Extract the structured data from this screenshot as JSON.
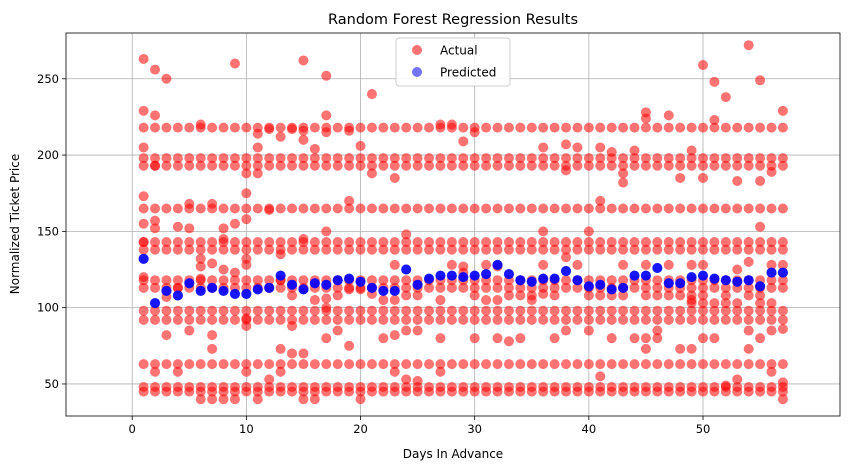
{
  "chart_data": {
    "type": "scatter",
    "title": "Random Forest Regression Results",
    "xlabel": "Days In Advance",
    "ylabel": "Normalized Ticket Price",
    "xlim": [
      -5.8,
      62
    ],
    "ylim": [
      29,
      280
    ],
    "xticks": [
      0,
      10,
      20,
      30,
      40,
      50
    ],
    "yticks": [
      50,
      100,
      150,
      200,
      250
    ],
    "grid": true,
    "legend_position": "upper center",
    "series": [
      {
        "name": "Actual",
        "color": "#ff0000",
        "alpha": 0.55,
        "price_levels": [
          45,
          48,
          63,
          92,
          98,
          113,
          118,
          138,
          143,
          165,
          193,
          198,
          218
        ],
        "outliers": [
          [
            1,
            263
          ],
          [
            1,
            229
          ],
          [
            1,
            205
          ],
          [
            1,
            173
          ],
          [
            1,
            155
          ],
          [
            1,
            143
          ],
          [
            1,
            120
          ],
          [
            2,
            256
          ],
          [
            2,
            226
          ],
          [
            2,
            193
          ],
          [
            2,
            157
          ],
          [
            2,
            152
          ],
          [
            2,
            58
          ],
          [
            3,
            250
          ],
          [
            3,
            107
          ],
          [
            3,
            82
          ],
          [
            4,
            153
          ],
          [
            4,
            113
          ],
          [
            4,
            58
          ],
          [
            5,
            168
          ],
          [
            5,
            152
          ],
          [
            5,
            85
          ],
          [
            6,
            220
          ],
          [
            6,
            132
          ],
          [
            6,
            127
          ],
          [
            6,
            119
          ],
          [
            6,
            40
          ],
          [
            7,
            168
          ],
          [
            7,
            129
          ],
          [
            7,
            82
          ],
          [
            7,
            73
          ],
          [
            7,
            40
          ],
          [
            8,
            152
          ],
          [
            8,
            145
          ],
          [
            8,
            125
          ],
          [
            8,
            40
          ],
          [
            9,
            260
          ],
          [
            9,
            155
          ],
          [
            9,
            123
          ],
          [
            9,
            40
          ],
          [
            10,
            188
          ],
          [
            10,
            175
          ],
          [
            10,
            158
          ],
          [
            10,
            132
          ],
          [
            10,
            128
          ],
          [
            10,
            93
          ],
          [
            10,
            88
          ],
          [
            10,
            58
          ],
          [
            11,
            214
          ],
          [
            11,
            205
          ],
          [
            11,
            188
          ],
          [
            11,
            40
          ],
          [
            12,
            217
          ],
          [
            12,
            164
          ],
          [
            12,
            53
          ],
          [
            13,
            212
          ],
          [
            13,
            135
          ],
          [
            13,
            118
          ],
          [
            13,
            73
          ],
          [
            13,
            58
          ],
          [
            14,
            217
          ],
          [
            14,
            108
          ],
          [
            14,
            88
          ],
          [
            14,
            70
          ],
          [
            15,
            262
          ],
          [
            15,
            216
          ],
          [
            15,
            210
          ],
          [
            15,
            145
          ],
          [
            15,
            70
          ],
          [
            15,
            40
          ],
          [
            16,
            204
          ],
          [
            16,
            105
          ],
          [
            16,
            40
          ],
          [
            17,
            252
          ],
          [
            17,
            226
          ],
          [
            17,
            215
          ],
          [
            17,
            150
          ],
          [
            17,
            106
          ],
          [
            17,
            100
          ],
          [
            17,
            80
          ],
          [
            18,
            108
          ],
          [
            18,
            85
          ],
          [
            19,
            216
          ],
          [
            19,
            170
          ],
          [
            19,
            112
          ],
          [
            19,
            75
          ],
          [
            20,
            206
          ],
          [
            20,
            112
          ],
          [
            20,
            40
          ],
          [
            21,
            240
          ],
          [
            21,
            188
          ],
          [
            21,
            109
          ],
          [
            22,
            105
          ],
          [
            22,
            80
          ],
          [
            23,
            185
          ],
          [
            23,
            128
          ],
          [
            23,
            105
          ],
          [
            23,
            82
          ],
          [
            23,
            58
          ],
          [
            24,
            148
          ],
          [
            24,
            108
          ],
          [
            24,
            85
          ],
          [
            24,
            53
          ],
          [
            25,
            108
          ],
          [
            25,
            85
          ],
          [
            25,
            52
          ],
          [
            27,
            220
          ],
          [
            27,
            105
          ],
          [
            27,
            80
          ],
          [
            27,
            58
          ],
          [
            28,
            220
          ],
          [
            28,
            128
          ],
          [
            29,
            209
          ],
          [
            29,
            127
          ],
          [
            29,
            123
          ],
          [
            30,
            215
          ],
          [
            30,
            108
          ],
          [
            30,
            80
          ],
          [
            31,
            128
          ],
          [
            31,
            105
          ],
          [
            32,
            127
          ],
          [
            32,
            105
          ],
          [
            32,
            80
          ],
          [
            33,
            108
          ],
          [
            33,
            78
          ],
          [
            34,
            108
          ],
          [
            34,
            80
          ],
          [
            35,
            108
          ],
          [
            35,
            105
          ],
          [
            36,
            205
          ],
          [
            36,
            150
          ],
          [
            36,
            128
          ],
          [
            36,
            109
          ],
          [
            37,
            108
          ],
          [
            37,
            80
          ],
          [
            38,
            207
          ],
          [
            38,
            190
          ],
          [
            38,
            133
          ],
          [
            38,
            85
          ],
          [
            39,
            205
          ],
          [
            39,
            128
          ],
          [
            40,
            150
          ],
          [
            40,
            108
          ],
          [
            40,
            85
          ],
          [
            41,
            205
          ],
          [
            41,
            170
          ],
          [
            41,
            108
          ],
          [
            41,
            55
          ],
          [
            42,
            202
          ],
          [
            42,
            108
          ],
          [
            42,
            80
          ],
          [
            43,
            188
          ],
          [
            43,
            182
          ],
          [
            43,
            128
          ],
          [
            43,
            108
          ],
          [
            44,
            203
          ],
          [
            44,
            80
          ],
          [
            45,
            228
          ],
          [
            45,
            224
          ],
          [
            45,
            128
          ],
          [
            45,
            108
          ],
          [
            45,
            80
          ],
          [
            45,
            73
          ],
          [
            46,
            108
          ],
          [
            46,
            85
          ],
          [
            46,
            80
          ],
          [
            47,
            226
          ],
          [
            47,
            128
          ],
          [
            47,
            108
          ],
          [
            48,
            185
          ],
          [
            48,
            108
          ],
          [
            48,
            73
          ],
          [
            49,
            203
          ],
          [
            49,
            128
          ],
          [
            49,
            108
          ],
          [
            49,
            105
          ],
          [
            49,
            103
          ],
          [
            49,
            73
          ],
          [
            50,
            259
          ],
          [
            50,
            185
          ],
          [
            50,
            128
          ],
          [
            50,
            108
          ],
          [
            50,
            103
          ],
          [
            50,
            80
          ],
          [
            51,
            248
          ],
          [
            51,
            223
          ],
          [
            51,
            103
          ],
          [
            51,
            80
          ],
          [
            52,
            238
          ],
          [
            52,
            108
          ],
          [
            52,
            103
          ],
          [
            52,
            49
          ],
          [
            53,
            183
          ],
          [
            53,
            125
          ],
          [
            53,
            103
          ],
          [
            53,
            53
          ],
          [
            54,
            272
          ],
          [
            54,
            130
          ],
          [
            54,
            108
          ],
          [
            54,
            85
          ],
          [
            54,
            73
          ],
          [
            55,
            249
          ],
          [
            55,
            183
          ],
          [
            55,
            153
          ],
          [
            55,
            108
          ],
          [
            55,
            103
          ],
          [
            55,
            80
          ],
          [
            56,
            189
          ],
          [
            56,
            128
          ],
          [
            56,
            103
          ],
          [
            56,
            85
          ],
          [
            56,
            58
          ],
          [
            57,
            229
          ],
          [
            57,
            128
          ],
          [
            57,
            86
          ],
          [
            57,
            51
          ],
          [
            57,
            40
          ]
        ]
      },
      {
        "name": "Predicted",
        "color": "#0000ff",
        "alpha": 0.55,
        "points": [
          [
            1,
            132
          ],
          [
            2,
            103
          ],
          [
            3,
            111
          ],
          [
            4,
            108
          ],
          [
            5,
            116
          ],
          [
            6,
            111
          ],
          [
            7,
            113
          ],
          [
            8,
            111
          ],
          [
            9,
            109
          ],
          [
            10,
            109
          ],
          [
            11,
            112
          ],
          [
            12,
            113
          ],
          [
            13,
            121
          ],
          [
            14,
            115
          ],
          [
            15,
            112
          ],
          [
            16,
            116
          ],
          [
            17,
            115
          ],
          [
            18,
            118
          ],
          [
            19,
            119
          ],
          [
            20,
            117
          ],
          [
            21,
            113
          ],
          [
            22,
            111
          ],
          [
            23,
            111
          ],
          [
            24,
            125
          ],
          [
            25,
            115
          ],
          [
            26,
            119
          ],
          [
            27,
            121
          ],
          [
            28,
            121
          ],
          [
            29,
            120
          ],
          [
            30,
            121
          ],
          [
            31,
            122
          ],
          [
            32,
            128
          ],
          [
            33,
            122
          ],
          [
            34,
            118
          ],
          [
            35,
            117
          ],
          [
            36,
            119
          ],
          [
            37,
            119
          ],
          [
            38,
            124
          ],
          [
            39,
            118
          ],
          [
            40,
            114
          ],
          [
            41,
            115
          ],
          [
            42,
            112
          ],
          [
            43,
            113
          ],
          [
            44,
            121
          ],
          [
            45,
            121
          ],
          [
            46,
            126
          ],
          [
            47,
            116
          ],
          [
            48,
            116
          ],
          [
            49,
            120
          ],
          [
            50,
            121
          ],
          [
            51,
            119
          ],
          [
            52,
            118
          ],
          [
            53,
            117
          ],
          [
            54,
            118
          ],
          [
            55,
            114
          ],
          [
            56,
            123
          ],
          [
            57,
            123
          ]
        ]
      }
    ]
  }
}
